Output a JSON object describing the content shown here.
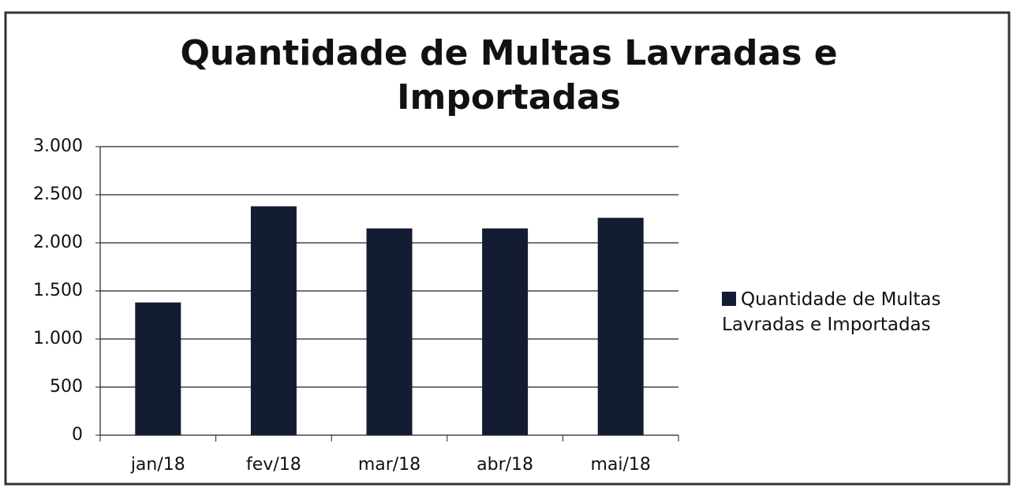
{
  "chart_data": {
    "type": "bar",
    "title": "Quantidade de Multas Lavradas e Importadas",
    "categories": [
      "jan/18",
      "fev/18",
      "mar/18",
      "abr/18",
      "mai/18"
    ],
    "series": [
      {
        "name": "Quantidade de Multas Lavradas e Importadas",
        "color": "#141c33",
        "values": [
          1380,
          2380,
          2150,
          2150,
          2260
        ]
      }
    ],
    "ylim": [
      0,
      3000
    ],
    "yticks": [
      0,
      500,
      {
        "value": 1000,
        "label": "1.000"
      },
      {
        "value": 1500,
        "label": "1.500"
      },
      {
        "value": 2000,
        "label": "2.000"
      },
      {
        "value": 2500,
        "label": "2.500"
      },
      {
        "value": 3000,
        "label": "3.000"
      }
    ],
    "grid": true,
    "legend": "right"
  }
}
